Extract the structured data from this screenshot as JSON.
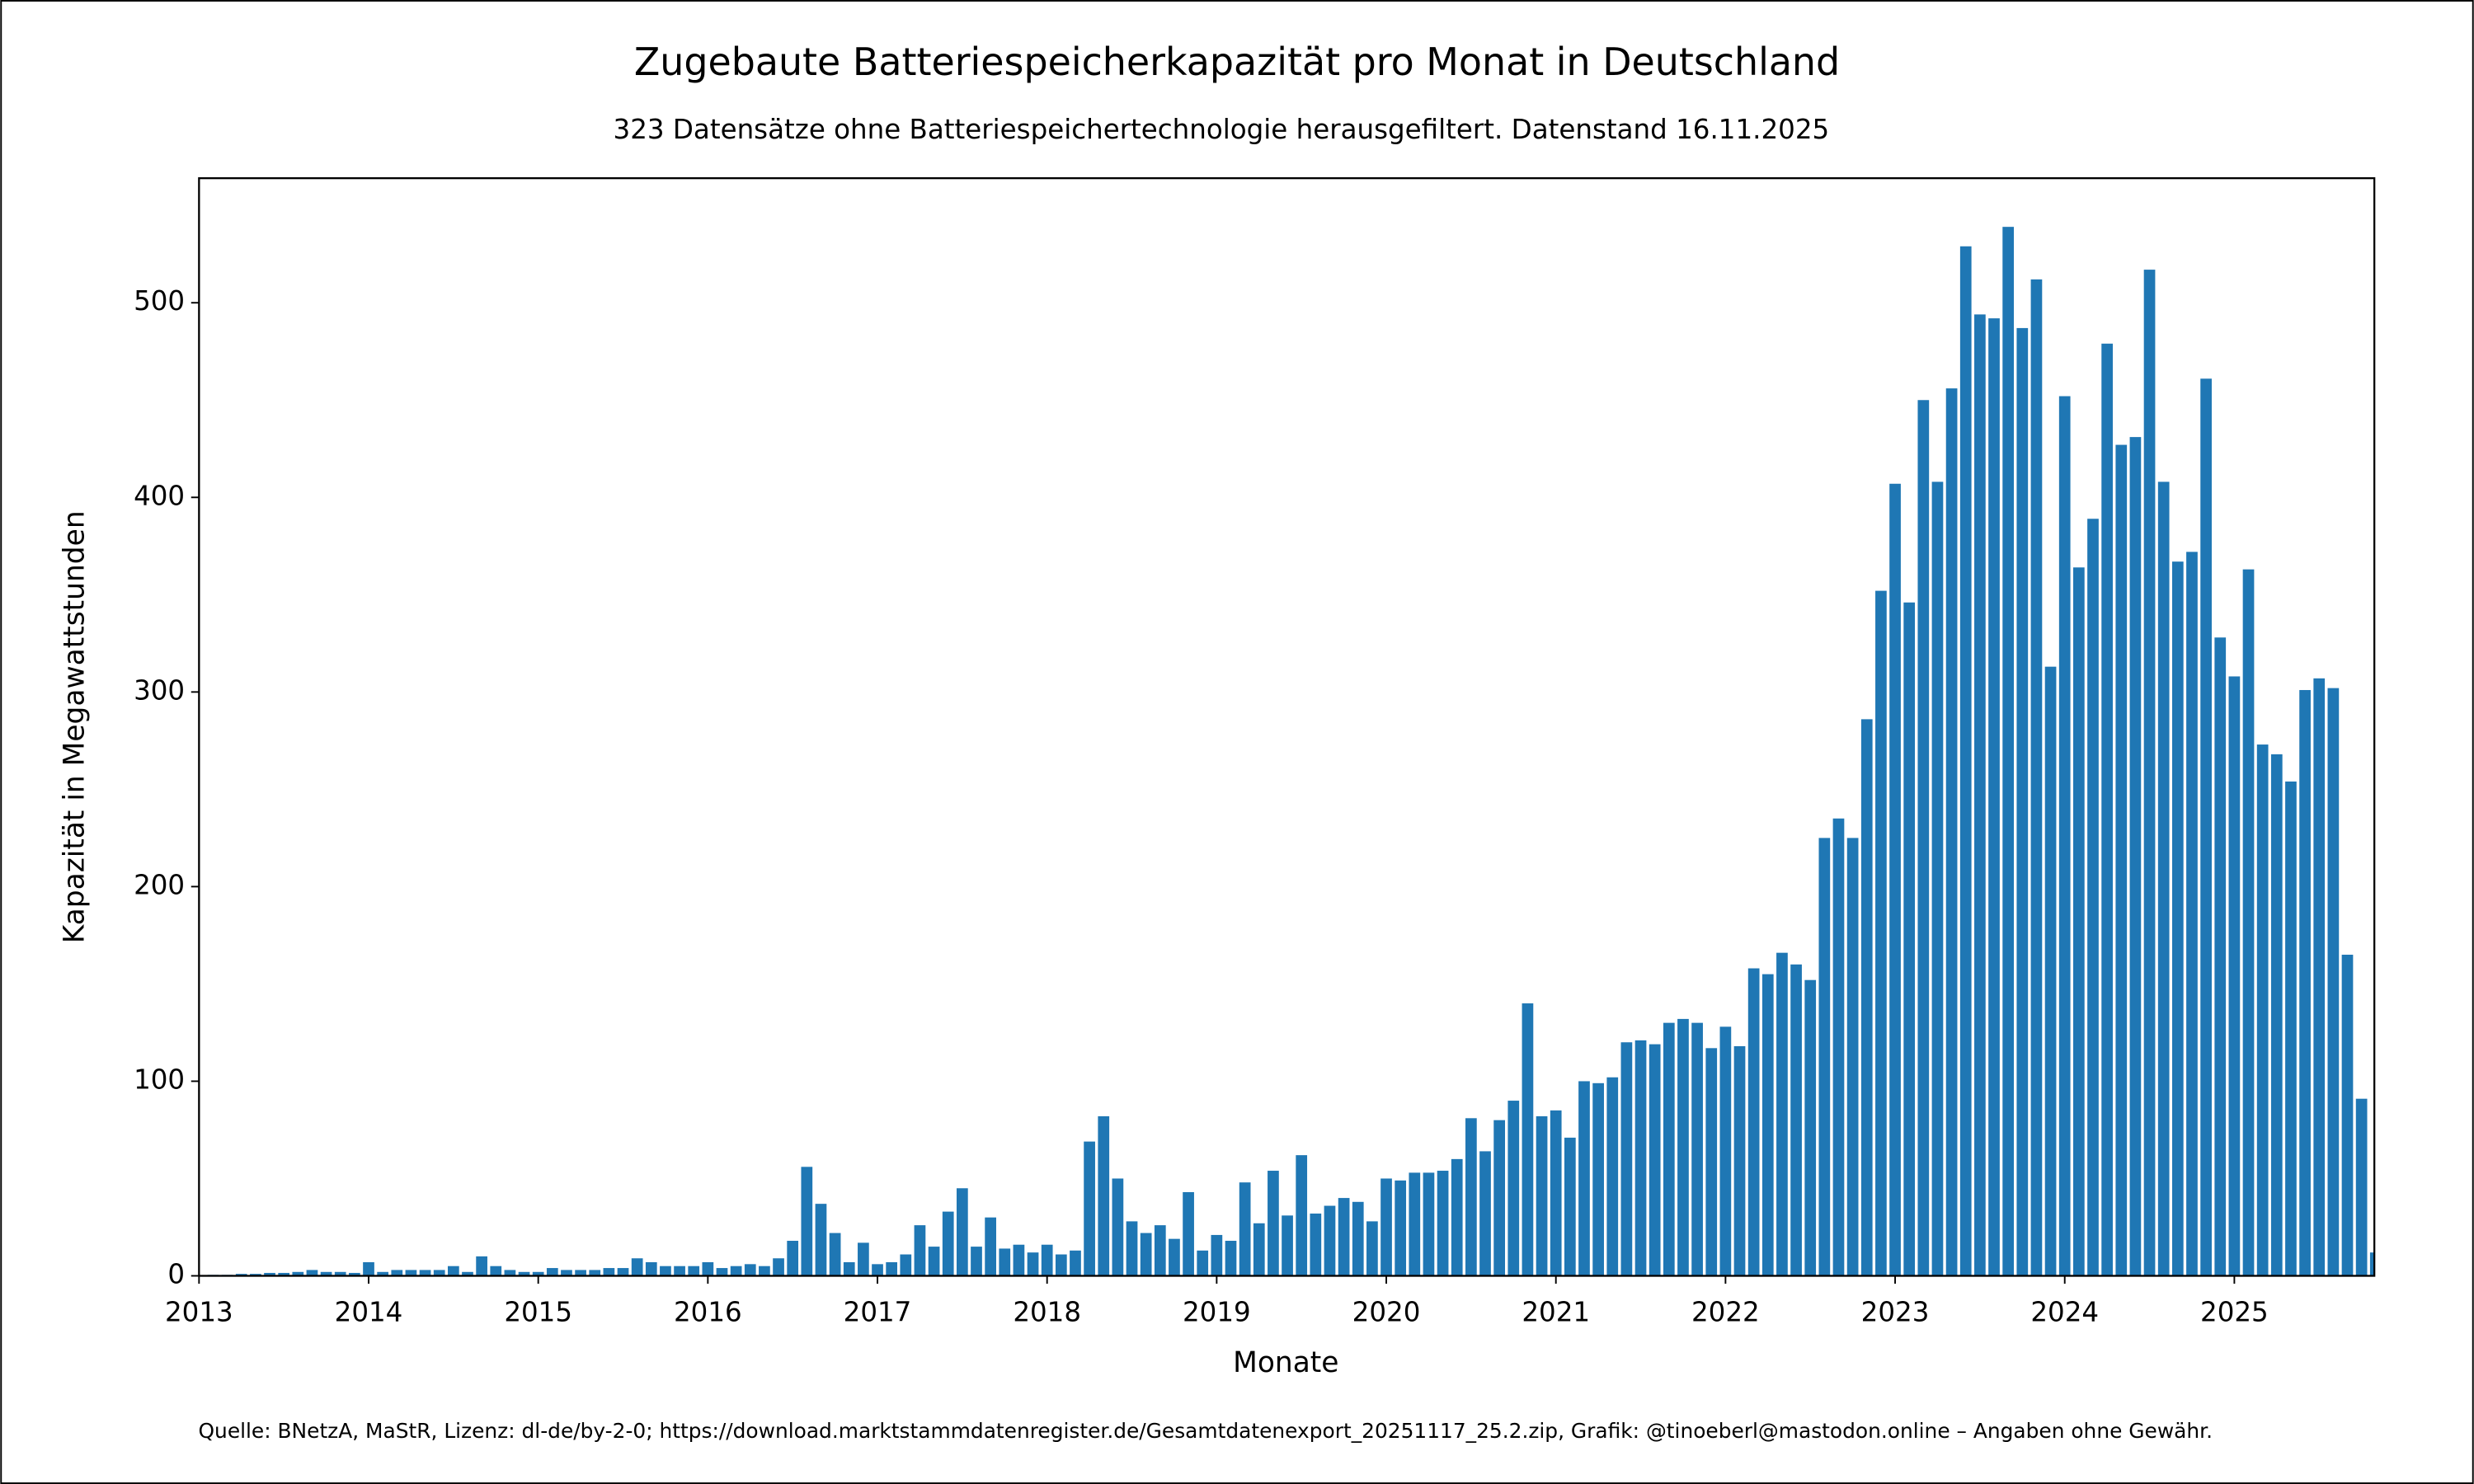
{
  "chart_data": {
    "type": "bar",
    "title": "Zugebaute Batteriespeicherkapazität pro Monat in Deutschland",
    "subtitle": "323 Datensätze ohne Batteriespeichertechnologie herausgefiltert. Datenstand 16.11.2025",
    "x_label": "Monate",
    "y_label": "Kapazität in Megawattstunden",
    "footer": "Quelle: BNetzA, MaStR, Lizenz: dl-de/by-2-0; https://download.marktstammdatenregister.de/Gesamtdatenexport_20251117_25.2.zip, Grafik: @tinoeberl@mastodon.online – Angaben ohne Gewähr.",
    "color": "#1f77b4",
    "categories": [
      "2013",
      null,
      null,
      null,
      null,
      null,
      null,
      null,
      null,
      null,
      null,
      null,
      "2014",
      null,
      null,
      null,
      null,
      null,
      null,
      null,
      null,
      null,
      null,
      null,
      "2015",
      null,
      null,
      null,
      null,
      null,
      null,
      null,
      null,
      null,
      null,
      null,
      "2016",
      null,
      null,
      null,
      null,
      null,
      null,
      null,
      null,
      null,
      null,
      null,
      "2017",
      null,
      null,
      null,
      null,
      null,
      null,
      null,
      null,
      null,
      null,
      null,
      "2018",
      null,
      null,
      null,
      null,
      null,
      null,
      null,
      null,
      null,
      null,
      null,
      "2019",
      null,
      null,
      null,
      null,
      null,
      null,
      null,
      null,
      null,
      null,
      null,
      "2020",
      null,
      null,
      null,
      null,
      null,
      null,
      null,
      null,
      null,
      null,
      null,
      "2021",
      null,
      null,
      null,
      null,
      null,
      null,
      null,
      null,
      null,
      null,
      null,
      "2022",
      null,
      null,
      null,
      null,
      null,
      null,
      null,
      null,
      null,
      null,
      null,
      "2023",
      null,
      null,
      null,
      null,
      null,
      null,
      null,
      null,
      null,
      null,
      null,
      "2024",
      null,
      null,
      null,
      null,
      null,
      null,
      null,
      null,
      null,
      null,
      null,
      "2025",
      null,
      null,
      null,
      null,
      null,
      null,
      null,
      null,
      null,
      null
    ],
    "values": [
      0.3,
      0.5,
      0.5,
      1,
      1,
      1.5,
      1.5,
      2,
      3,
      2,
      2,
      1.5,
      7,
      2,
      3,
      3,
      3,
      3,
      5,
      2,
      10,
      5,
      3,
      2,
      2,
      4,
      3,
      3,
      3,
      4,
      4,
      9,
      7,
      5,
      5,
      5,
      7,
      4,
      5,
      6,
      5,
      9,
      18,
      56,
      37,
      22,
      7,
      17,
      6,
      7,
      11,
      26,
      15,
      33,
      45,
      15,
      30,
      14,
      16,
      12,
      16,
      11,
      13,
      69,
      82,
      50,
      28,
      22,
      26,
      19,
      43,
      13,
      21,
      18,
      48,
      27,
      54,
      31,
      62,
      32,
      36,
      40,
      38,
      28,
      50,
      49,
      53,
      53,
      54,
      60,
      81,
      64,
      80,
      90,
      140,
      82,
      85,
      71,
      100,
      99,
      102,
      120,
      121,
      119,
      130,
      132,
      130,
      117,
      128,
      118,
      158,
      155,
      166,
      160,
      152,
      225,
      235,
      225,
      286,
      352,
      407,
      346,
      450,
      408,
      456,
      529,
      494,
      492,
      539,
      487,
      512,
      313,
      452,
      364,
      389,
      479,
      427,
      431,
      517,
      408,
      367,
      372,
      461,
      328,
      308,
      363,
      273,
      268,
      254,
      301,
      307,
      302,
      165,
      91,
      12
    ],
    "ylim": [
      0,
      564
    ],
    "yticks": [
      0,
      100,
      200,
      300,
      400,
      500
    ]
  }
}
